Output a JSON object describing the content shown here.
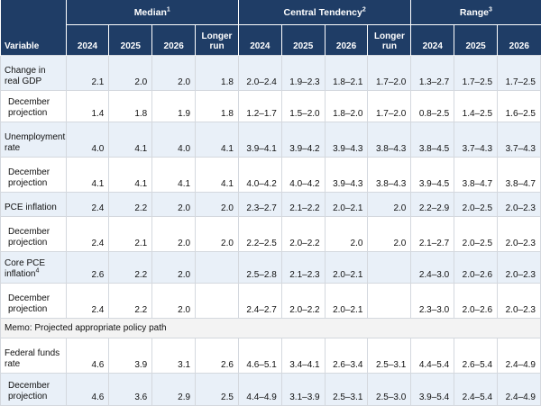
{
  "header": {
    "groups": [
      {
        "label": "Median",
        "note": "1"
      },
      {
        "label": "Central Tendency",
        "note": "2"
      },
      {
        "label": "Range",
        "note": "3"
      }
    ],
    "variable_label": "Variable",
    "cols": [
      "2024",
      "2025",
      "2026"
    ],
    "longer_run_line1": "Longer",
    "longer_run_line2": "run"
  },
  "rows": [
    {
      "label": "Change in real GDP",
      "note": "",
      "median": [
        "2.1",
        "2.0",
        "2.0",
        "1.8"
      ],
      "central": [
        "2.0–2.4",
        "1.9–2.3",
        "1.8–2.1",
        "1.7–2.0"
      ],
      "range": [
        "1.3–2.7",
        "1.7–2.5",
        "1.7–2.5"
      ]
    },
    {
      "label": "December projection",
      "note": "",
      "median": [
        "1.4",
        "1.8",
        "1.9",
        "1.8"
      ],
      "central": [
        "1.2–1.7",
        "1.5–2.0",
        "1.8–2.0",
        "1.7–2.0"
      ],
      "range": [
        "0.8–2.5",
        "1.4–2.5",
        "1.6–2.5"
      ]
    },
    {
      "label": "Unemployment rate",
      "note": "",
      "median": [
        "4.0",
        "4.1",
        "4.0",
        "4.1"
      ],
      "central": [
        "3.9–4.1",
        "3.9–4.2",
        "3.9–4.3",
        "3.8–4.3"
      ],
      "range": [
        "3.8–4.5",
        "3.7–4.3",
        "3.7–4.3"
      ]
    },
    {
      "label": "December projection",
      "note": "",
      "median": [
        "4.1",
        "4.1",
        "4.1",
        "4.1"
      ],
      "central": [
        "4.0–4.2",
        "4.0–4.2",
        "3.9–4.3",
        "3.8–4.3"
      ],
      "range": [
        "3.9–4.5",
        "3.8–4.7",
        "3.8–4.7"
      ]
    },
    {
      "label": "PCE inflation",
      "note": "",
      "median": [
        "2.4",
        "2.2",
        "2.0",
        "2.0"
      ],
      "central": [
        "2.3–2.7",
        "2.1–2.2",
        "2.0–2.1",
        "2.0"
      ],
      "range": [
        "2.2–2.9",
        "2.0–2.5",
        "2.0–2.3"
      ]
    },
    {
      "label": "December projection",
      "note": "",
      "median": [
        "2.4",
        "2.1",
        "2.0",
        "2.0"
      ],
      "central": [
        "2.2–2.5",
        "2.0–2.2",
        "2.0",
        "2.0"
      ],
      "range": [
        "2.1–2.7",
        "2.0–2.5",
        "2.0–2.3"
      ]
    },
    {
      "label": "Core PCE inflation",
      "note": "4",
      "median": [
        "2.6",
        "2.2",
        "2.0",
        ""
      ],
      "central": [
        "2.5–2.8",
        "2.1–2.3",
        "2.0–2.1",
        ""
      ],
      "range": [
        "2.4–3.0",
        "2.0–2.6",
        "2.0–2.3"
      ]
    },
    {
      "label": "December projection",
      "note": "",
      "median": [
        "2.4",
        "2.2",
        "2.0",
        ""
      ],
      "central": [
        "2.4–2.7",
        "2.0–2.2",
        "2.0–2.1",
        ""
      ],
      "range": [
        "2.3–3.0",
        "2.0–2.6",
        "2.0–2.3"
      ]
    },
    {
      "label": "Federal funds rate",
      "note": "",
      "median": [
        "4.6",
        "3.9",
        "3.1",
        "2.6"
      ],
      "central": [
        "4.6–5.1",
        "3.4–4.1",
        "2.6–3.4",
        "2.5–3.1"
      ],
      "range": [
        "4.4–5.4",
        "2.6–5.4",
        "2.4–4.9"
      ]
    },
    {
      "label": "December projection",
      "note": "",
      "median": [
        "4.6",
        "3.6",
        "2.9",
        "2.5"
      ],
      "central": [
        "4.4–4.9",
        "3.1–3.9",
        "2.5–3.1",
        "2.5–3.0"
      ],
      "range": [
        "3.9–5.4",
        "2.4–5.4",
        "2.4–4.9"
      ]
    }
  ],
  "memo": "Memo: Projected appropriate policy path"
}
